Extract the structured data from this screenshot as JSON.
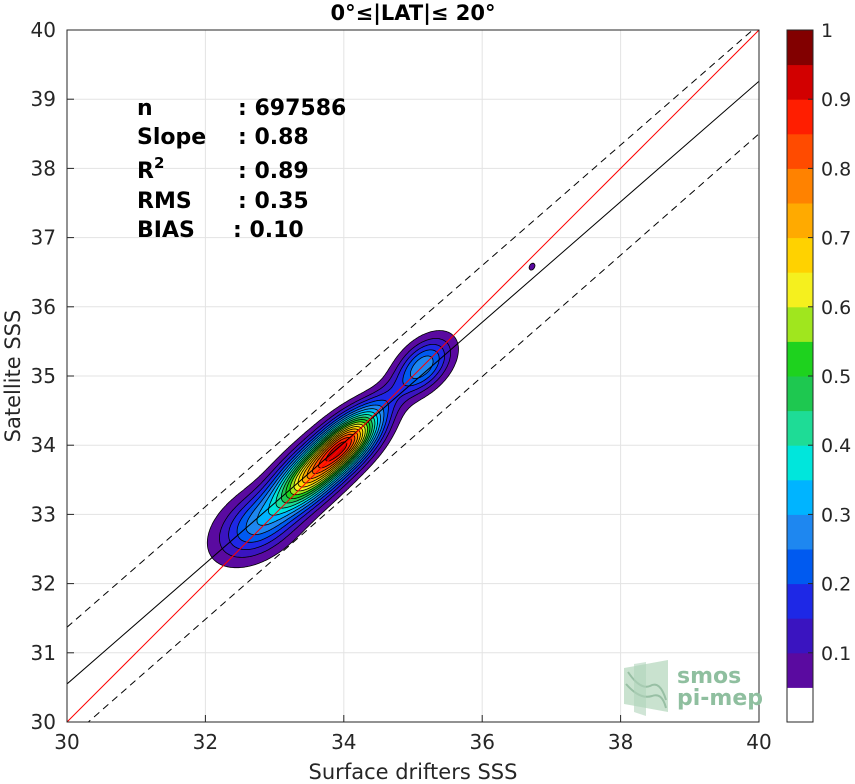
{
  "chart_data": {
    "type": "heatmap",
    "title": "0°≤|LAT|≤ 20°",
    "xlabel": "Surface drifters SSS",
    "ylabel": "Satellite SSS",
    "xlim": [
      30,
      40
    ],
    "ylim": [
      30,
      40
    ],
    "xticks": [
      "30",
      "32",
      "34",
      "36",
      "38",
      "40"
    ],
    "yticks": [
      "30",
      "31",
      "32",
      "33",
      "34",
      "35",
      "36",
      "37",
      "38",
      "39",
      "40"
    ],
    "grid": true,
    "stats": [
      {
        "label": "n",
        "value": ": 697586"
      },
      {
        "label": "Slope",
        "value": ": 0.88"
      },
      {
        "label": "R",
        "sup": "2",
        "value": ": 0.89"
      },
      {
        "label": "RMS",
        "value": ": 0.35"
      },
      {
        "label": "BIAS",
        "value": ": 0.10"
      }
    ],
    "lines": {
      "identity": {
        "x": [
          30,
          40
        ],
        "y": [
          30,
          40
        ],
        "color": "#ff0000"
      },
      "regression": {
        "x": [
          30,
          40
        ],
        "y": [
          30.55,
          39.26
        ],
        "color": "#000000"
      },
      "upper_bound": {
        "x": [
          30,
          40
        ],
        "y": [
          31.37,
          40.08
        ],
        "color": "#000000",
        "dash": true
      },
      "lower_bound": {
        "x": [
          30,
          40
        ],
        "y": [
          29.73,
          38.5
        ],
        "color": "#000000",
        "dash": true
      }
    },
    "density_peaks": [
      {
        "x": 33.5,
        "y": 33.55,
        "sx": 0.45,
        "sy": 0.22,
        "angle": 42,
        "amp": 0.62
      },
      {
        "x": 34.05,
        "y": 34.05,
        "sx": 0.4,
        "sy": 0.2,
        "angle": 42,
        "amp": 0.72
      },
      {
        "x": 32.75,
        "y": 32.85,
        "sx": 0.45,
        "sy": 0.28,
        "angle": 35,
        "amp": 0.25
      },
      {
        "x": 35.15,
        "y": 35.15,
        "sx": 0.33,
        "sy": 0.2,
        "angle": 45,
        "amp": 0.28
      },
      {
        "x": 34.55,
        "y": 34.6,
        "sx": 0.4,
        "sy": 0.16,
        "angle": 42,
        "amp": 0.09
      },
      {
        "x": 36.72,
        "y": 36.58,
        "sx": 0.05,
        "sy": 0.035,
        "angle": 60,
        "amp": 0.09
      }
    ],
    "colorbar": {
      "ticks": [
        "0.1",
        "0.2",
        "0.3",
        "0.4",
        "0.5",
        "0.6",
        "0.7",
        "0.8",
        "0.9",
        "1"
      ],
      "colors": [
        "#ffffff",
        "#5a0aa0",
        "#3a14c0",
        "#1e28e6",
        "#005af0",
        "#1e87f0",
        "#00b4ff",
        "#00e6dc",
        "#1edc96",
        "#1ec850",
        "#1ed21e",
        "#a0e61e",
        "#f5f01e",
        "#ffd200",
        "#ffaa00",
        "#ff8200",
        "#ff4b00",
        "#ff1e00",
        "#d20000",
        "#820000"
      ]
    }
  },
  "watermark": {
    "line1": "smos",
    "line2": "pi-mep"
  }
}
